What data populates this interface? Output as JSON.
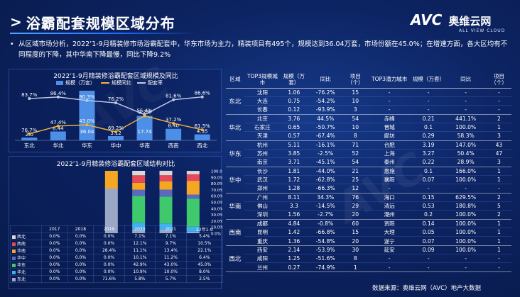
{
  "page": {
    "title": "浴霸配套规模区域分布",
    "summary": "从区域市场分析，2022’1-9月精装修市场浴霸配套中，华东市场为主力，精装项目有495个，规模达到36.04万套，市场份额在45.0%；在增速方面，各大区均有不同程度的下降，其中华南下降最慢，同比下降9.2%",
    "logo_main": "AVC",
    "logo_cn": "奥维云网",
    "logo_sub": "ALL VIEW CLOUD",
    "source": "数据来源：奥维云网（AVC）地产大数据",
    "colors": {
      "bar": "#4d8fe6",
      "line": "#f5b731",
      "accent": "#1e6bff"
    }
  },
  "chart_data": [
    {
      "type": "bar",
      "title": "2022’1-9月精装修浴霸配套区域规模及同比",
      "categories": [
        "东北",
        "华北",
        "华东",
        "华中",
        "华南",
        "西南",
        "西北"
      ],
      "series": [
        {
          "name": "规模（万套）",
          "values": [
            2.0,
            6.44,
            36.04,
            3.12,
            17.74,
            8.4,
            4.35
          ],
          "labels": [
            "2.0",
            "6.44",
            "36.04",
            "3.12",
            "17.74",
            "8.40",
            "4.35"
          ]
        },
        {
          "name": "规模同比",
          "values": [
            -76.7,
            -47.4,
            -43.0,
            -69.2,
            -9.2,
            -37.2,
            -61.5
          ],
          "labels": [
            "76.7%",
            "47.4%",
            "43.0%",
            "69.2%",
            "9.2%",
            "37.2%",
            "61.5%"
          ]
        },
        {
          "name": "配套率",
          "values": [
            83.7,
            86.4,
            80.3,
            76.2,
            55.4,
            81.6,
            86.6
          ],
          "labels": [
            "83.7%",
            "86.4%",
            "80.3%",
            "76.2%",
            "55.4%",
            "81.6%",
            "86.6%"
          ]
        }
      ]
    },
    {
      "type": "bar",
      "stacked": true,
      "title": "2022’1-9月精装修浴霸配套区域结构对比",
      "categories": [
        "2017",
        "2018",
        "2019",
        "2020",
        "2021",
        "22年1-9"
      ],
      "y_tick_labels": [
        "100.0%",
        "90.0%",
        "80.0%",
        "70.0%",
        "60.0%",
        "50.0%",
        "40.0%",
        "30.0%",
        "20.0%",
        "10.0%",
        "0.0%"
      ],
      "series": [
        {
          "name": "西北",
          "color": "#d9d9d9",
          "values": [
            0,
            0,
            0,
            7.1,
            7.1,
            5.4
          ]
        },
        {
          "name": "西南",
          "color": "#e64a5a",
          "values": [
            0,
            0,
            0,
            12.1,
            9.7,
            10.5
          ]
        },
        {
          "name": "华南",
          "color": "#f5a623",
          "values": [
            0,
            0,
            28.4,
            11.1,
            13.4,
            22.1
          ]
        },
        {
          "name": "华中",
          "color": "#5b6abf",
          "values": [
            0,
            0,
            0,
            10.1,
            11.2,
            6.4
          ]
        },
        {
          "name": "华东",
          "color": "#3ec96d",
          "values": [
            0,
            0,
            0,
            42.9,
            43.0,
            45.0
          ]
        },
        {
          "name": "华北",
          "color": "#3fb0f0",
          "values": [
            0,
            0,
            0,
            10.9,
            10.0,
            8.0
          ]
        },
        {
          "name": "东北",
          "color": "#9aa8c6",
          "values": [
            0,
            0,
            71.6,
            5.8,
            5.7,
            2.5
          ]
        }
      ],
      "table_rows": [
        {
          "name": "西北",
          "cells": [
            "0.0%",
            "0.0%",
            "0.0%",
            "7.1%",
            "7.1%",
            "5.4%"
          ]
        },
        {
          "name": "西南",
          "cells": [
            "0.0%",
            "0.0%",
            "0.0%",
            "12.1%",
            "9.7%",
            "10.5%"
          ]
        },
        {
          "name": "华南",
          "cells": [
            "0.0%",
            "0.0%",
            "28.4%",
            "11.1%",
            "13.4%",
            "22.1%"
          ]
        },
        {
          "name": "华中",
          "cells": [
            "0.0%",
            "0.0%",
            "0.0%",
            "10.1%",
            "11.2%",
            "6.4%"
          ]
        },
        {
          "name": "华东",
          "cells": [
            "0.0%",
            "0.0%",
            "0.0%",
            "42.9%",
            "43.0%",
            "45.0%"
          ]
        },
        {
          "name": "华北",
          "cells": [
            "0.0%",
            "0.0%",
            "0.0%",
            "10.9%",
            "10.0%",
            "8.0%"
          ]
        },
        {
          "name": "东北",
          "cells": [
            "0.0%",
            "0.0%",
            "71.6%",
            "5.8%",
            "5.7%",
            "2.5%"
          ]
        }
      ]
    },
    {
      "type": "table",
      "headers": [
        "区域",
        "TOP3规模城市",
        "规模（万套）",
        "同比",
        "项目（个）",
        "TOP3潜力城市",
        "规模（万套）",
        "同比",
        "项目（个）"
      ],
      "groups": [
        {
          "region": "东北",
          "rows": [
            [
              "沈阳",
              "1.06",
              "-76.2%",
              "15",
              "-",
              "-",
              "-",
              "-"
            ],
            [
              "大连",
              "0.75",
              "-54.2%",
              "10",
              "-",
              "-",
              "-",
              "-"
            ],
            [
              "长春",
              "0.12",
              "-93.9%",
              "3",
              "-",
              "-",
              "-",
              "-"
            ]
          ]
        },
        {
          "region": "华北",
          "rows": [
            [
              "北京",
              "3.76",
              "44.5%",
              "54",
              "赤峰",
              "0.21",
              "441.1%",
              "2"
            ],
            [
              "石家庄",
              "0.65",
              "-50.7%",
              "10",
              "晋城",
              "0.1",
              "100.0%",
              "1"
            ],
            [
              "天津",
              "0.57",
              "-67.4%",
              "8",
              "廊坊",
              "0.29",
              "58.3%",
              "3"
            ]
          ]
        },
        {
          "region": "华东",
          "rows": [
            [
              "杭州",
              "5.11",
              "-16.1%",
              "71",
              "合肥",
              "3.19",
              "147.0%",
              "43"
            ],
            [
              "苏州",
              "3.85",
              "-2.5%",
              "52",
              "上海",
              "3.27",
              "50.4%",
              "47"
            ],
            [
              "南京",
              "3.71",
              "-45.1%",
              "54",
              "泰州",
              "0.22",
              "28.9%",
              "3"
            ]
          ]
        },
        {
          "region": "华中",
          "rows": [
            [
              "长沙",
              "1.81",
              "-44.0%",
              "21",
              "恩施",
              "0.1",
              "166.0%",
              "1"
            ],
            [
              "武汉",
              "1.72",
              "-62.8%",
              "25",
              "襄阳",
              "0.07",
              "100.0%",
              "1"
            ],
            [
              "郑州",
              "1.28",
              "-66.3%",
              "12",
              "-",
              "-",
              "-",
              "-"
            ]
          ]
        },
        {
          "region": "华南",
          "rows": [
            [
              "广州",
              "8.11",
              "34.3%",
              "76",
              "海口",
              "0.15",
              "629.5%",
              "2"
            ],
            [
              "佛山",
              "3.3",
              "-14.5%",
              "29",
              "清远",
              "0.53",
              "180.8%",
              "5"
            ],
            [
              "深圳",
              "1.56",
              "-2.7%",
              "20",
              "潮州",
              "0.2",
              "100.0%",
              "2"
            ]
          ]
        },
        {
          "region": "西南",
          "rows": [
            [
              "成都",
              "4.84",
              "-0.8%",
              "60",
              "资阳",
              "0.14",
              "100.0%",
              "1"
            ],
            [
              "昆明",
              "1.42",
              "-66.8%",
              "15",
              "大理",
              "0.05",
              "100.0%",
              "1"
            ],
            [
              "重庆",
              "1.36",
              "-54.8%",
              "20",
              "遂宁",
              "0.07",
              "100.0%",
              "1"
            ]
          ]
        },
        {
          "region": "西北",
          "rows": [
            [
              "西安",
              "2.14",
              "-53.9%",
              "30",
              "延安",
              "0.09",
              "100.0%",
              "1"
            ],
            [
              "咸阳",
              "1.25",
              "-51.6%",
              "8",
              "-",
              "-",
              "-",
              "-"
            ],
            [
              "兰州",
              "0.27",
              "-74.9%",
              "1",
              "-",
              "-",
              "-",
              "-"
            ]
          ]
        }
      ]
    }
  ]
}
